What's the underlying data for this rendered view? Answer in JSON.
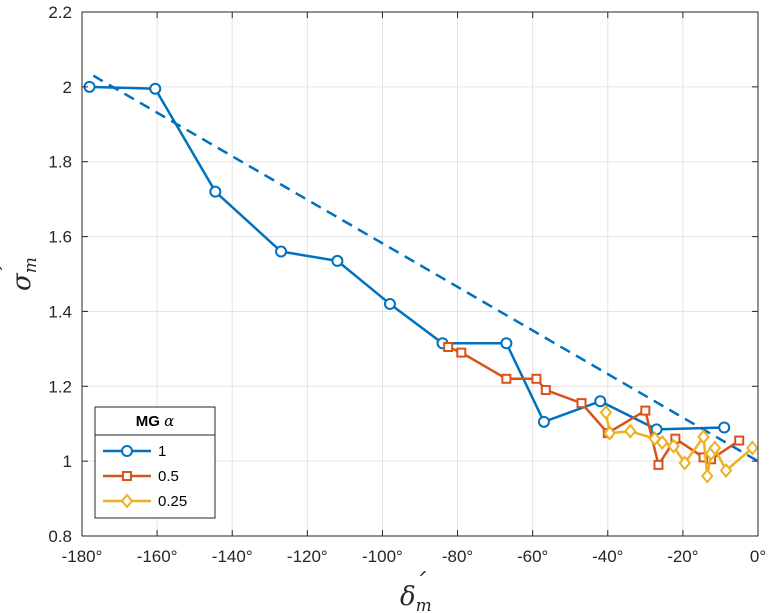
{
  "chart_data": {
    "type": "line",
    "title": "",
    "xlabel": "δ'm",
    "ylabel": "σ'm",
    "xlabel_main": "δ",
    "xlabel_sub": "m",
    "ylabel_main": "σ",
    "ylabel_sub": "m",
    "prime": "´",
    "xlim": [
      -180,
      0
    ],
    "ylim": [
      0.8,
      2.2
    ],
    "grid": true,
    "xticks": [
      -180,
      -160,
      -140,
      -120,
      -100,
      -80,
      -60,
      -40,
      -20,
      0
    ],
    "xtick_labels": [
      "-180°",
      "-160°",
      "-140°",
      "-120°",
      "-100°",
      "-80°",
      "-60°",
      "-40°",
      "-20°",
      "0°"
    ],
    "yticks": [
      0.8,
      1.0,
      1.2,
      1.4,
      1.6,
      1.8,
      2.0,
      2.2
    ],
    "ytick_labels": [
      "0.8",
      "1",
      "1.2",
      "1.4",
      "1.6",
      "1.8",
      "2",
      "2.2"
    ],
    "legend": {
      "title_main": "MG ",
      "title_symbol": "α",
      "placement": "bottom-left"
    },
    "series": [
      {
        "name": "1",
        "color": "#0072BD",
        "marker": "circle",
        "x": [
          -178,
          -160.5,
          -144.5,
          -127,
          -112,
          -98,
          -84,
          -67,
          -57,
          -42,
          -27,
          -9
        ],
        "y": [
          2.0,
          1.995,
          1.72,
          1.56,
          1.535,
          1.42,
          1.315,
          1.315,
          1.105,
          1.16,
          1.085,
          1.09
        ]
      },
      {
        "name": "0.5",
        "color": "#D95319",
        "marker": "square",
        "x": [
          -82.5,
          -79,
          -67,
          -59,
          -56.5,
          -47,
          -40,
          -30,
          -26.5,
          -22,
          -14.5,
          -12.5,
          -5
        ],
        "y": [
          1.305,
          1.29,
          1.22,
          1.22,
          1.19,
          1.155,
          1.075,
          1.135,
          0.99,
          1.06,
          1.01,
          1.005,
          1.055
        ]
      },
      {
        "name": "0.25",
        "color": "#EDB120",
        "marker": "diamond",
        "x": [
          -40.5,
          -39.5,
          -34,
          -27.5,
          -25.5,
          -22.5,
          -19.5,
          -14.5,
          -13.5,
          -12.5,
          -11.5,
          -8.5,
          -1.5
        ],
        "y": [
          1.13,
          1.075,
          1.08,
          1.06,
          1.05,
          1.04,
          0.995,
          1.065,
          0.96,
          1.02,
          1.035,
          0.975,
          1.035
        ]
      }
    ],
    "trendline": {
      "style": "dashed",
      "color": "#0072BD",
      "x": [
        -177,
        0
      ],
      "y": [
        2.03,
        1.0
      ]
    }
  }
}
